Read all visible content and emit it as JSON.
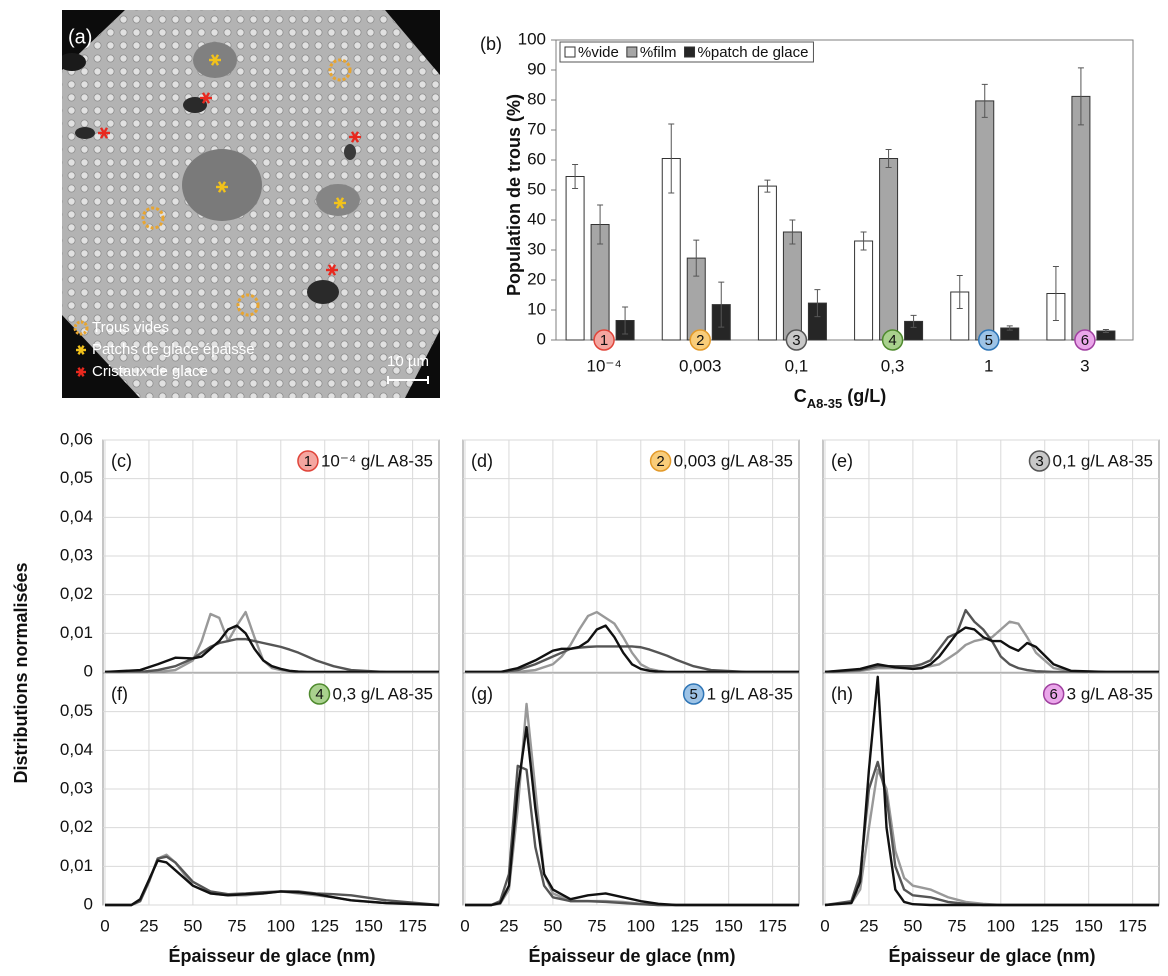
{
  "image": {
    "label": "(a)",
    "legend": [
      "Trous vides",
      "Patchs de glace épaisse",
      "Cristaux de glace"
    ],
    "scale": "10 µm"
  },
  "chart_data": [
    {
      "type": "bar",
      "panel_label": "(b)",
      "categories": [
        "10⁻⁴",
        "0,003",
        "0,1",
        "0,3",
        "1",
        "3"
      ],
      "badges": [
        {
          "label": "1",
          "color": "#f4a6a0",
          "edge": "#e0453a"
        },
        {
          "label": "2",
          "color": "#f9cd7a",
          "edge": "#e39a2a"
        },
        {
          "label": "3",
          "color": "#c8c8c8",
          "edge": "#555555"
        },
        {
          "label": "4",
          "color": "#a9d18e",
          "edge": "#4f8a2e"
        },
        {
          "label": "5",
          "color": "#9dc3e6",
          "edge": "#2e75b6"
        },
        {
          "label": "6",
          "color": "#eaa6ea",
          "edge": "#a040a0"
        }
      ],
      "series": [
        {
          "name": "%vide",
          "color": "#ffffff",
          "values": [
            54.5,
            60.5,
            51.3,
            33,
            16,
            15.5
          ],
          "errors": [
            4,
            11.5,
            2,
            3,
            5.5,
            9
          ]
        },
        {
          "name": "%film",
          "color": "#a6a6a6",
          "values": [
            38.5,
            27.3,
            36,
            60.5,
            79.7,
            81.2
          ],
          "errors": [
            6.5,
            6,
            4,
            3,
            5.5,
            9.5
          ]
        },
        {
          "name": "%patch de glace",
          "color": "#262626",
          "values": [
            6.5,
            11.8,
            12.3,
            6.2,
            4,
            3
          ],
          "errors": [
            4.5,
            7.5,
            4.5,
            2,
            0.7,
            0.5
          ]
        }
      ],
      "ylim": [
        0,
        100
      ],
      "yticks": [
        0,
        10,
        20,
        30,
        40,
        50,
        60,
        70,
        80,
        90,
        100
      ],
      "y_label": "Population de trous (%)",
      "x_label": {
        "base": "C",
        "sub": "A8-35",
        "unit": "(g/L)"
      },
      "legend": "top-left"
    },
    {
      "type": "line",
      "panel_label": "(c)",
      "badge": {
        "label": "1",
        "color": "#f4a6a0",
        "edge": "#e0453a"
      },
      "label": "10⁻⁴ g/L A8-35",
      "y_label": "Distributions normalisées",
      "xlim": [
        0,
        190
      ],
      "ylim": [
        0,
        0.06
      ],
      "xticks": [
        0,
        25,
        50,
        75,
        100,
        125,
        150,
        175
      ],
      "yticks": [
        0,
        {
          "value": 0.01,
          "label": "0,01"
        },
        {
          "value": 0.02,
          "label": "0,02"
        },
        {
          "value": 0.03,
          "label": "0,03"
        },
        {
          "value": 0.04,
          "label": "0,04"
        },
        {
          "value": 0.05,
          "label": "0,05"
        },
        {
          "value": 0.06,
          "label": "0,06"
        }
      ],
      "x": [
        0,
        20,
        30,
        40,
        50,
        55,
        60,
        65,
        70,
        75,
        80,
        85,
        90,
        95,
        100,
        105,
        110,
        115,
        120,
        130,
        140,
        160,
        190
      ],
      "series": [
        {
          "color": "#999999",
          "values": [
            0,
            0,
            0,
            0.0005,
            0.003,
            0.008,
            0.015,
            0.014,
            0.008,
            0.012,
            0.0155,
            0.009,
            0.003,
            0.001,
            0.0005,
            0.0002,
            0,
            0,
            0,
            0,
            0,
            0,
            0
          ]
        },
        {
          "color": "#555555",
          "values": [
            0,
            0,
            0.0005,
            0.0015,
            0.0035,
            0.005,
            0.0065,
            0.0075,
            0.008,
            0.0085,
            0.0085,
            0.008,
            0.0075,
            0.007,
            0.0065,
            0.0058,
            0.005,
            0.004,
            0.003,
            0.0015,
            0.0005,
            0,
            0
          ]
        },
        {
          "color": "#111111",
          "values": [
            0,
            0.0005,
            0.002,
            0.0037,
            0.0035,
            0.004,
            0.006,
            0.008,
            0.011,
            0.012,
            0.01,
            0.006,
            0.003,
            0.0015,
            0.0008,
            0.0003,
            0.0001,
            0,
            0,
            0,
            0,
            0,
            0
          ]
        }
      ]
    },
    {
      "type": "line",
      "panel_label": "(d)",
      "badge": {
        "label": "2",
        "color": "#f9cd7a",
        "edge": "#e39a2a"
      },
      "label": "0,003 g/L A8-35",
      "xlim": [
        0,
        190
      ],
      "ylim": [
        0,
        0.06
      ],
      "xticks": [
        0,
        25,
        50,
        75,
        100,
        125,
        150,
        175
      ],
      "yticks": [
        0,
        0.01,
        0.02,
        0.03,
        0.04,
        0.05,
        0.06
      ],
      "x": [
        0,
        20,
        30,
        40,
        50,
        55,
        60,
        65,
        70,
        75,
        80,
        85,
        90,
        95,
        100,
        105,
        110,
        115,
        120,
        130,
        140,
        160,
        190
      ],
      "series": [
        {
          "color": "#999999",
          "values": [
            0,
            0,
            0,
            0.0005,
            0.002,
            0.004,
            0.007,
            0.011,
            0.0145,
            0.0155,
            0.014,
            0.0125,
            0.009,
            0.005,
            0.002,
            0.0008,
            0.0003,
            0,
            0,
            0,
            0,
            0,
            0
          ]
        },
        {
          "color": "#555555",
          "values": [
            0,
            0,
            0.0005,
            0.002,
            0.004,
            0.005,
            0.006,
            0.0063,
            0.0065,
            0.0066,
            0.0066,
            0.0066,
            0.0066,
            0.0066,
            0.0064,
            0.0058,
            0.005,
            0.0042,
            0.0032,
            0.0015,
            0.0005,
            0,
            0
          ]
        },
        {
          "color": "#111111",
          "values": [
            0,
            0,
            0.001,
            0.003,
            0.0055,
            0.006,
            0.006,
            0.0065,
            0.008,
            0.011,
            0.012,
            0.009,
            0.005,
            0.002,
            0.0008,
            0.0003,
            0.0001,
            0,
            0,
            0,
            0,
            0,
            0
          ]
        }
      ]
    },
    {
      "type": "line",
      "panel_label": "(e)",
      "badge": {
        "label": "3",
        "color": "#c8c8c8",
        "edge": "#555555"
      },
      "label": "0,1 g/L A8-35",
      "xlim": [
        0,
        190
      ],
      "ylim": [
        0,
        0.06
      ],
      "xticks": [
        0,
        25,
        50,
        75,
        100,
        125,
        150,
        175
      ],
      "yticks": [
        0,
        0.01,
        0.02,
        0.03,
        0.04,
        0.05,
        0.06
      ],
      "x": [
        0,
        20,
        30,
        40,
        50,
        55,
        60,
        65,
        70,
        75,
        80,
        85,
        90,
        95,
        100,
        105,
        110,
        115,
        120,
        130,
        140,
        160,
        190
      ],
      "series": [
        {
          "color": "#999999",
          "values": [
            0,
            0.0003,
            0.001,
            0.001,
            0.001,
            0.0012,
            0.0015,
            0.002,
            0.0035,
            0.005,
            0.007,
            0.008,
            0.0085,
            0.009,
            0.011,
            0.013,
            0.0125,
            0.009,
            0.005,
            0.001,
            0.0002,
            0,
            0
          ]
        },
        {
          "color": "#555555",
          "values": [
            0,
            0.0005,
            0.0015,
            0.0015,
            0.0015,
            0.002,
            0.003,
            0.006,
            0.009,
            0.01,
            0.016,
            0.013,
            0.011,
            0.008,
            0.004,
            0.002,
            0.001,
            0.0005,
            0.0002,
            0,
            0,
            0,
            0
          ]
        },
        {
          "color": "#111111",
          "values": [
            0,
            0.0008,
            0.002,
            0.0012,
            0.0008,
            0.001,
            0.002,
            0.004,
            0.007,
            0.01,
            0.0115,
            0.011,
            0.009,
            0.008,
            0.008,
            0.0065,
            0.0055,
            0.0075,
            0.0065,
            0.002,
            0.0003,
            0,
            0
          ]
        }
      ]
    },
    {
      "type": "line",
      "panel_label": "(f)",
      "badge": {
        "label": "4",
        "color": "#a9d18e",
        "edge": "#4f8a2e"
      },
      "label": "0,3 g/L A8-35",
      "x_label": "Épaisseur de glace (nm)",
      "xlim": [
        0,
        190
      ],
      "ylim": [
        0,
        0.06
      ],
      "xticks": [
        0,
        25,
        50,
        75,
        100,
        125,
        150,
        175
      ],
      "yticks": [
        0,
        {
          "value": 0.01,
          "label": "0,01"
        },
        {
          "value": 0.02,
          "label": "0,02"
        },
        {
          "value": 0.03,
          "label": "0,03"
        },
        {
          "value": 0.04,
          "label": "0,04"
        },
        {
          "value": 0.05,
          "label": "0,05"
        }
      ],
      "x": [
        0,
        15,
        20,
        25,
        30,
        35,
        40,
        45,
        50,
        60,
        70,
        80,
        90,
        100,
        110,
        120,
        130,
        140,
        160,
        190
      ],
      "series": [
        {
          "color": "#999999",
          "values": [
            0,
            0,
            0.001,
            0.006,
            0.012,
            0.013,
            0.011,
            0.008,
            0.005,
            0.003,
            0.0025,
            0.0025,
            0.003,
            0.0035,
            0.003,
            0.0025,
            0.002,
            0.0012,
            0.0005,
            0
          ]
        },
        {
          "color": "#555555",
          "values": [
            0,
            0,
            0.001,
            0.006,
            0.012,
            0.0125,
            0.011,
            0.0085,
            0.006,
            0.0035,
            0.0028,
            0.003,
            0.0033,
            0.0035,
            0.0035,
            0.003,
            0.0028,
            0.0025,
            0.0012,
            0
          ]
        },
        {
          "color": "#111111",
          "values": [
            0,
            0,
            0.0015,
            0.0065,
            0.0115,
            0.011,
            0.009,
            0.007,
            0.005,
            0.003,
            0.0025,
            0.0028,
            0.003,
            0.0035,
            0.0033,
            0.0028,
            0.002,
            0.0012,
            0.0005,
            0
          ]
        }
      ]
    },
    {
      "type": "line",
      "panel_label": "(g)",
      "badge": {
        "label": "5",
        "color": "#9dc3e6",
        "edge": "#2e75b6"
      },
      "label": "1 g/L A8-35",
      "x_label": "Épaisseur de glace (nm)",
      "xlim": [
        0,
        190
      ],
      "ylim": [
        0,
        0.06
      ],
      "xticks": [
        0,
        25,
        50,
        75,
        100,
        125,
        150,
        175
      ],
      "yticks": [
        0,
        0.01,
        0.02,
        0.03,
        0.04,
        0.05
      ],
      "x": [
        0,
        15,
        20,
        25,
        30,
        35,
        40,
        45,
        50,
        60,
        70,
        80,
        90,
        100,
        110,
        120,
        130,
        140,
        160,
        190
      ],
      "series": [
        {
          "color": "#999999",
          "values": [
            0,
            0,
            0.0003,
            0.004,
            0.025,
            0.052,
            0.03,
            0.008,
            0.003,
            0.001,
            0.001,
            0.001,
            0.0008,
            0.0003,
            0,
            0,
            0,
            0,
            0,
            0
          ]
        },
        {
          "color": "#555555",
          "values": [
            0,
            0,
            0.001,
            0.008,
            0.036,
            0.035,
            0.015,
            0.005,
            0.002,
            0.001,
            0.001,
            0.0008,
            0.0005,
            0.0002,
            0,
            0,
            0,
            0,
            0,
            0
          ]
        },
        {
          "color": "#111111",
          "values": [
            0,
            0,
            0.0005,
            0.005,
            0.03,
            0.046,
            0.025,
            0.008,
            0.004,
            0.0015,
            0.0025,
            0.003,
            0.002,
            0.001,
            0.0003,
            0,
            0,
            0,
            0,
            0
          ]
        }
      ]
    },
    {
      "type": "line",
      "panel_label": "(h)",
      "badge": {
        "label": "6",
        "color": "#eaa6ea",
        "edge": "#a040a0"
      },
      "label": "3 g/L A8-35",
      "x_label": "Épaisseur de glace (nm)",
      "xlim": [
        0,
        190
      ],
      "ylim": [
        0,
        0.06
      ],
      "xticks": [
        0,
        25,
        50,
        75,
        100,
        125,
        150,
        175
      ],
      "yticks": [
        0,
        0.01,
        0.02,
        0.03,
        0.04,
        0.05
      ],
      "x": [
        0,
        15,
        20,
        25,
        30,
        35,
        40,
        45,
        50,
        60,
        70,
        80,
        90,
        100,
        110,
        120,
        130,
        140,
        160,
        190
      ],
      "series": [
        {
          "color": "#999999",
          "values": [
            0,
            0.0005,
            0.004,
            0.02,
            0.035,
            0.03,
            0.014,
            0.007,
            0.005,
            0.004,
            0.002,
            0.0008,
            0.0003,
            0,
            0,
            0,
            0,
            0,
            0,
            0
          ]
        },
        {
          "color": "#555555",
          "values": [
            0,
            0.001,
            0.008,
            0.03,
            0.037,
            0.028,
            0.01,
            0.004,
            0.0025,
            0.002,
            0.0008,
            0.0003,
            0,
            0,
            0,
            0,
            0,
            0,
            0,
            0
          ]
        },
        {
          "color": "#111111",
          "values": [
            0,
            0.0005,
            0.006,
            0.035,
            0.059,
            0.02,
            0.004,
            0.0008,
            0.0002,
            0,
            0,
            0,
            0,
            0,
            0,
            0,
            0,
            0,
            0,
            0
          ]
        }
      ]
    }
  ]
}
